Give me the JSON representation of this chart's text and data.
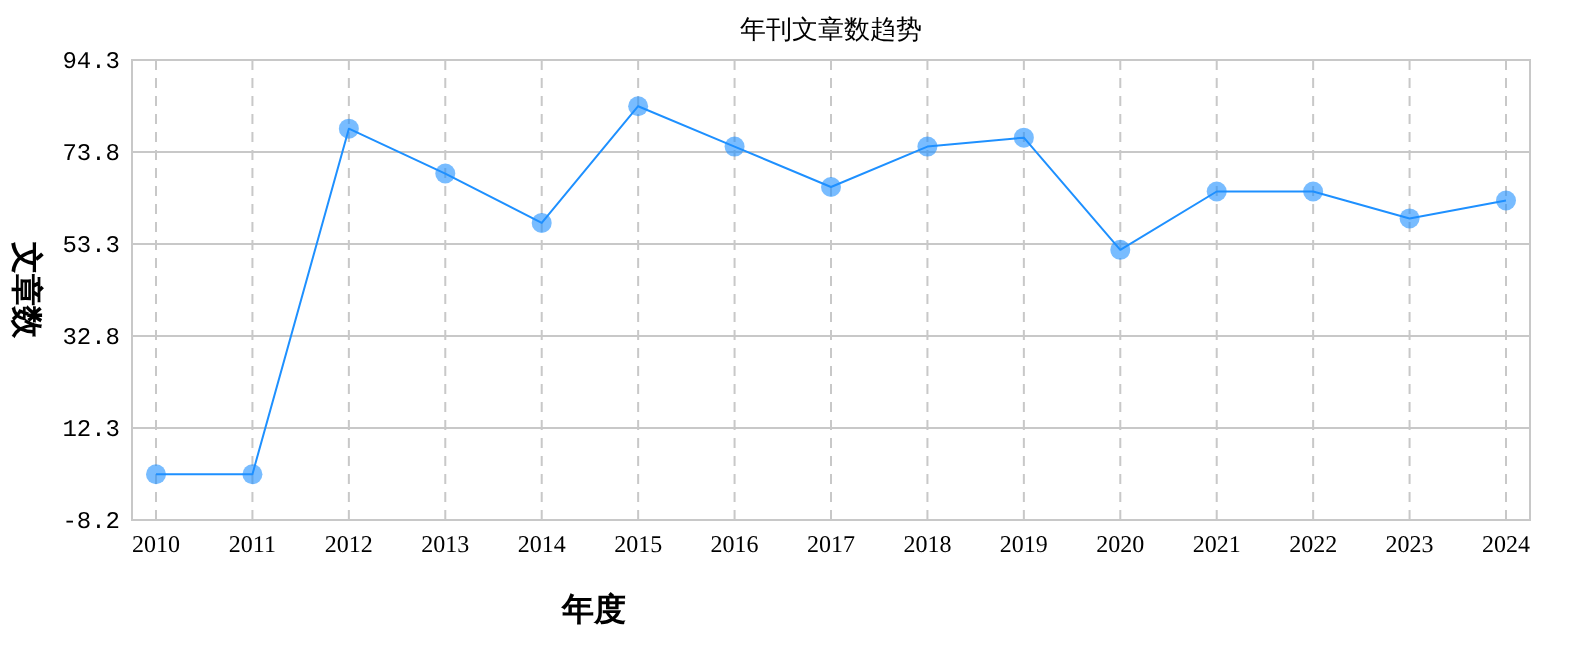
{
  "chart_data": {
    "type": "line",
    "title": "年刊文章数趋势",
    "xlabel": "年度",
    "ylabel": "文章数",
    "categories": [
      "2010",
      "2011",
      "2012",
      "2013",
      "2014",
      "2015",
      "2016",
      "2017",
      "2018",
      "2019",
      "2020",
      "2021",
      "2022",
      "2023",
      "2024"
    ],
    "values": [
      2,
      2,
      79,
      69,
      58,
      84,
      75,
      66,
      75,
      77,
      52,
      65,
      65,
      59,
      63
    ],
    "color": "#1e90ff",
    "marker": "circle",
    "grid": true,
    "ylim": [
      -8.2,
      94.3
    ],
    "yticks": [
      -8.2,
      12.3,
      32.8,
      53.3,
      73.8,
      94.3
    ]
  }
}
